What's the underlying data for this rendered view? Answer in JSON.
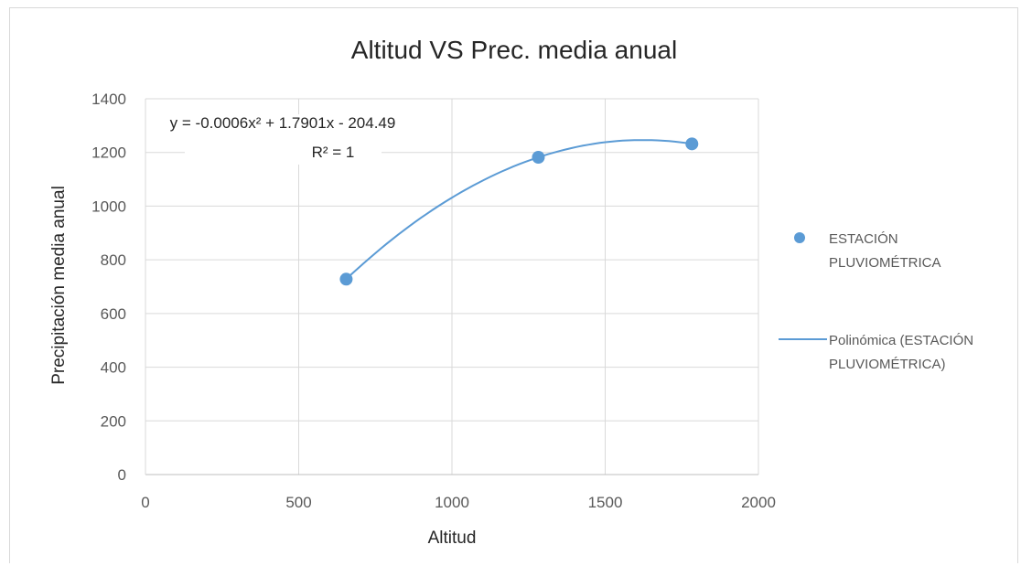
{
  "chart_data": {
    "type": "scatter",
    "title": "Altitud VS Prec. media anual",
    "xlabel": "Altitud",
    "ylabel": "Precipitación media anual",
    "xlim": [
      0,
      2000
    ],
    "ylim": [
      0,
      1400
    ],
    "xticks": [
      0,
      500,
      1000,
      1500,
      2000
    ],
    "yticks": [
      0,
      200,
      400,
      600,
      800,
      1000,
      1200,
      1400
    ],
    "grid": true,
    "legend_position": "right",
    "series": [
      {
        "name": "ESTACIÓN PLUVIOMÉTRICA",
        "name_lines": [
          "ESTACIÓN",
          "PLUVIOMÉTRICA"
        ],
        "color": "#5b9bd5",
        "x": [
          655,
          1282,
          1783
        ],
        "y": [
          728,
          1182,
          1232
        ]
      }
    ],
    "trendline": {
      "name": "Polinómica (ESTACIÓN PLUVIOMÉTRICA)",
      "name_lines": [
        "Polinómica (ESTACIÓN",
        "PLUVIOMÉTRICA)"
      ],
      "type": "polynomial",
      "order": 2,
      "color": "#5b9bd5",
      "equation_lines": [
        "y = -0.0006x² + 1.7901x - 204.49",
        "R² = 1"
      ]
    }
  }
}
